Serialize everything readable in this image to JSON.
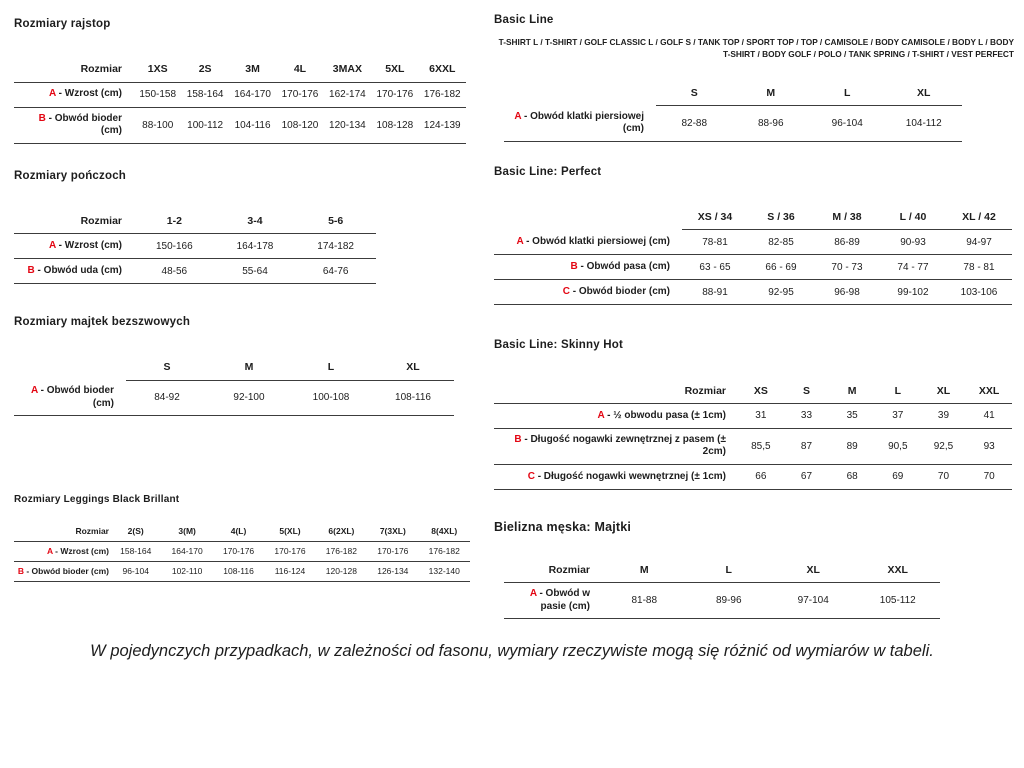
{
  "colors": {
    "row_prefix_red": "#e30613",
    "text": "#1d1d1d",
    "line": "#3c3c3c"
  },
  "footnote": "W pojedynczych przypadkach, w zależności od fasonu, wymiary rzeczywiste mogą się różnić od wymiarów w tabeli.",
  "left_tables": [
    {
      "title": "Rozmiary rajstop",
      "subtitle": "",
      "corner": "Rozmiar",
      "columns": [
        "1XS",
        "2S",
        "3M",
        "4L",
        "3MAX",
        "5XL",
        "6XXL"
      ],
      "rows": [
        {
          "prefix": "A",
          "label": "Wzrost (cm)",
          "values": [
            "150-158",
            "158-164",
            "164-170",
            "170-176",
            "162-174",
            "170-176",
            "176-182"
          ]
        },
        {
          "prefix": "B",
          "label": "Obwód bioder (cm)",
          "values": [
            "88-100",
            "100-112",
            "104-116",
            "108-120",
            "120-134",
            "108-128",
            "124-139"
          ]
        }
      ]
    },
    {
      "title": "Rozmiary pończoch",
      "subtitle": "",
      "corner": "Rozmiar",
      "columns": [
        "1-2",
        "3-4",
        "5-6"
      ],
      "rows": [
        {
          "prefix": "A",
          "label": "Wzrost (cm)",
          "values": [
            "150-166",
            "164-178",
            "174-182"
          ]
        },
        {
          "prefix": "B",
          "label": "Obwód uda (cm)",
          "values": [
            "48-56",
            "55-64",
            "64-76"
          ]
        }
      ]
    },
    {
      "title": "Rozmiary majtek bezszwowych",
      "subtitle": "",
      "corner": "",
      "columns": [
        "S",
        "M",
        "L",
        "XL"
      ],
      "rows": [
        {
          "prefix": "A",
          "label": "Obwód bioder (cm)",
          "values": [
            "84-92",
            "92-100",
            "100-108",
            "108-116"
          ]
        }
      ]
    },
    {
      "title": "Rozmiary Leggings Black Brillant",
      "subtitle": "",
      "corner": "Rozmiar",
      "columns": [
        "2(S)",
        "3(M)",
        "4(L)",
        "5(XL)",
        "6(2XL)",
        "7(3XL)",
        "8(4XL)"
      ],
      "rows": [
        {
          "prefix": "A",
          "label": "Wzrost (cm)",
          "values": [
            "158-164",
            "164-170",
            "170-176",
            "170-176",
            "176-182",
            "170-176",
            "176-182"
          ]
        },
        {
          "prefix": "B",
          "label": "Obwód bioder (cm)",
          "values": [
            "96-104",
            "102-110",
            "108-116",
            "116-124",
            "120-128",
            "126-134",
            "132-140"
          ]
        }
      ]
    }
  ],
  "right_tables": [
    {
      "title": "Basic Line",
      "subtitle": "T-SHIRT L / T-SHIRT / GOLF CLASSIC L / GOLF S / TANK TOP / SPORT TOP / TOP / CAMISOLE / BODY CAMISOLE / BODY L / BODY T-SHIRT / BODY GOLF / POLO / TANK SPRING / T-SHIRT / VEST PERFECT",
      "corner": "",
      "columns": [
        "S",
        "M",
        "L",
        "XL"
      ],
      "rows": [
        {
          "prefix": "A",
          "label": "Obwód klatki piersiowej (cm)",
          "values": [
            "82-88",
            "88-96",
            "96-104",
            "104-112"
          ]
        }
      ]
    },
    {
      "title": "Basic Line: Perfect",
      "subtitle": "",
      "corner": "",
      "columns": [
        "XS / 34",
        "S / 36",
        "M / 38",
        "L / 40",
        "XL / 42"
      ],
      "rows": [
        {
          "prefix": "A",
          "label": "Obwód klatki piersiowej (cm)",
          "values": [
            "78-81",
            "82-85",
            "86-89",
            "90-93",
            "94-97"
          ]
        },
        {
          "prefix": "B",
          "label": "Obwód pasa (cm)",
          "values": [
            "63 - 65",
            "66 - 69",
            "70 - 73",
            "74 - 77",
            "78 - 81"
          ]
        },
        {
          "prefix": "C",
          "label": "Obwód bioder (cm)",
          "values": [
            "88-91",
            "92-95",
            "96-98",
            "99-102",
            "103-106"
          ]
        }
      ]
    },
    {
      "title": "Basic Line: Skinny Hot",
      "subtitle": "",
      "corner": "Rozmiar",
      "columns": [
        "XS",
        "S",
        "M",
        "L",
        "XL",
        "XXL"
      ],
      "rows": [
        {
          "prefix": "A",
          "label": "½ obwodu pasa (± 1cm)",
          "values": [
            "31",
            "33",
            "35",
            "37",
            "39",
            "41"
          ]
        },
        {
          "prefix": "B",
          "label": "Długość nogawki zewnętrznej z pasem (± 2cm)",
          "values": [
            "85,5",
            "87",
            "89",
            "90,5",
            "92,5",
            "93"
          ]
        },
        {
          "prefix": "C",
          "label": "Długość nogawki wewnętrznej (± 1cm)",
          "values": [
            "66",
            "67",
            "68",
            "69",
            "70",
            "70"
          ]
        }
      ]
    },
    {
      "title": "Bielizna męska: Majtki",
      "subtitle": "",
      "corner": "Rozmiar",
      "columns": [
        "M",
        "L",
        "XL",
        "XXL"
      ],
      "rows": [
        {
          "prefix": "A",
          "label": "Obwód w pasie (cm)",
          "values": [
            "81-88",
            "89-96",
            "97-104",
            "105-112"
          ]
        }
      ]
    }
  ]
}
